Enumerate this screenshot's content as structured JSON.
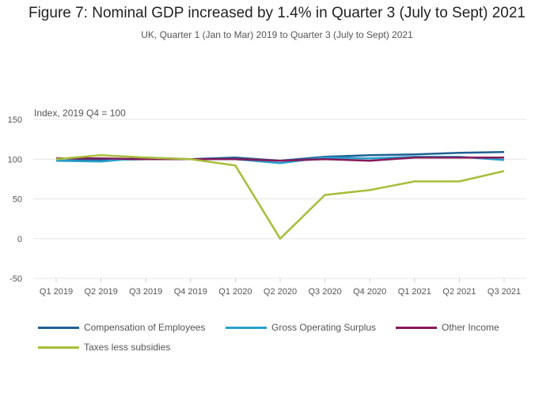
{
  "title": "Figure 7: Nominal GDP increased by 1.4% in Quarter 3 (July to Sept) 2021",
  "subtitle": "UK, Quarter 1 (Jan to Mar) 2019 to Quarter 3 (July to Sept) 2021",
  "chart_data": {
    "type": "line",
    "ylabel": "Index, 2019 Q4 = 100",
    "ylim": [
      -50,
      150
    ],
    "yticks": [
      150,
      100,
      50,
      0,
      -50
    ],
    "grid": true,
    "legend_position": "bottom",
    "categories": [
      "Q1 2019",
      "Q2 2019",
      "Q3 2019",
      "Q4 2019",
      "Q1 2020",
      "Q2 2020",
      "Q3 2020",
      "Q4 2020",
      "Q1 2021",
      "Q2 2021",
      "Q3 2021"
    ],
    "series": [
      {
        "name": "Compensation of Employees",
        "color": "#206095",
        "values": [
          98,
          99,
          100,
          100,
          102,
          98,
          103,
          105,
          106,
          108,
          109
        ]
      },
      {
        "name": "Gross Operating Surplus",
        "color": "#27a0cc",
        "values": [
          98,
          97,
          102,
          100,
          100,
          95,
          102,
          101,
          103,
          103,
          99
        ]
      },
      {
        "name": "Other Income",
        "color": "#871a5b",
        "values": [
          101,
          101,
          100,
          100,
          100,
          98,
          100,
          98,
          102,
          102,
          102
        ]
      },
      {
        "name": "Taxes less subsidies",
        "color": "#a8bd3a",
        "values": [
          100,
          105,
          102,
          100,
          92,
          0,
          55,
          61,
          72,
          72,
          85
        ]
      }
    ]
  }
}
